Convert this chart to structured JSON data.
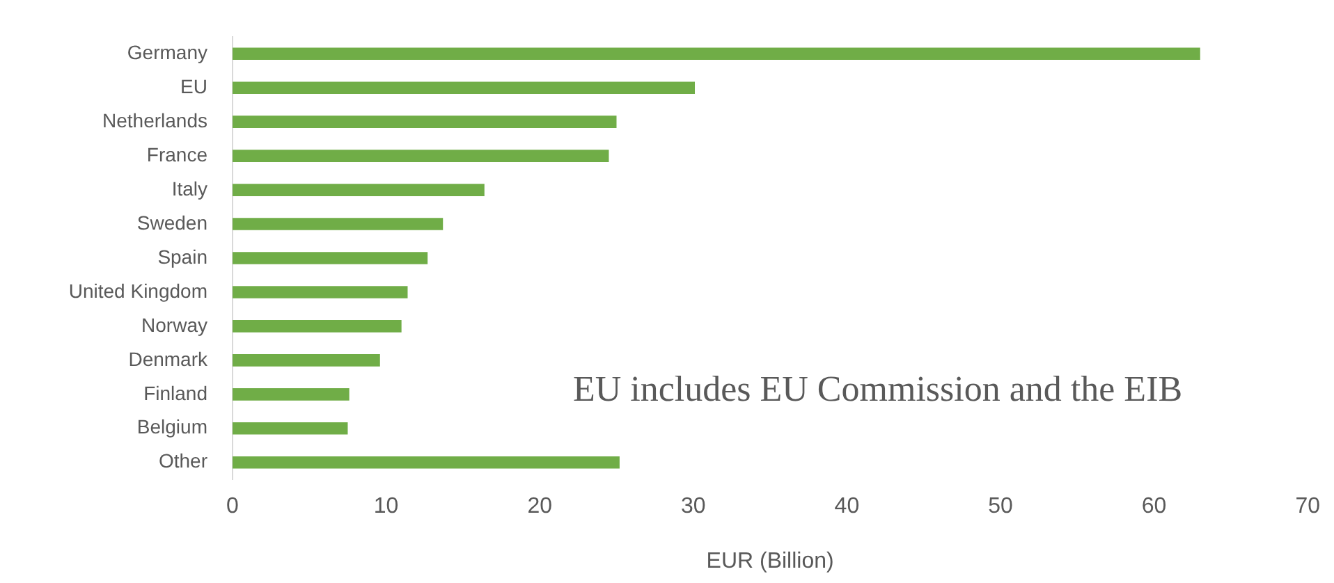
{
  "chart_data": {
    "type": "bar",
    "orientation": "horizontal",
    "xlabel": "EUR (Billion)",
    "categories": [
      "Germany",
      "EU",
      "Netherlands",
      "France",
      "Italy",
      "Sweden",
      "Spain",
      "United Kingdom",
      "Norway",
      "Denmark",
      "Finland",
      "Belgium",
      "Other"
    ],
    "values": [
      63.0,
      30.1,
      25.0,
      24.5,
      16.4,
      13.7,
      12.7,
      11.4,
      11.0,
      9.6,
      7.6,
      7.5,
      25.2
    ],
    "color": "#70ad47",
    "xlim": [
      0,
      70
    ],
    "xticks": [
      0,
      10,
      20,
      30,
      40,
      50,
      60,
      70
    ],
    "grid": false,
    "legend": false,
    "annotations": [
      "EU includes EU Commission and the EIB"
    ]
  }
}
